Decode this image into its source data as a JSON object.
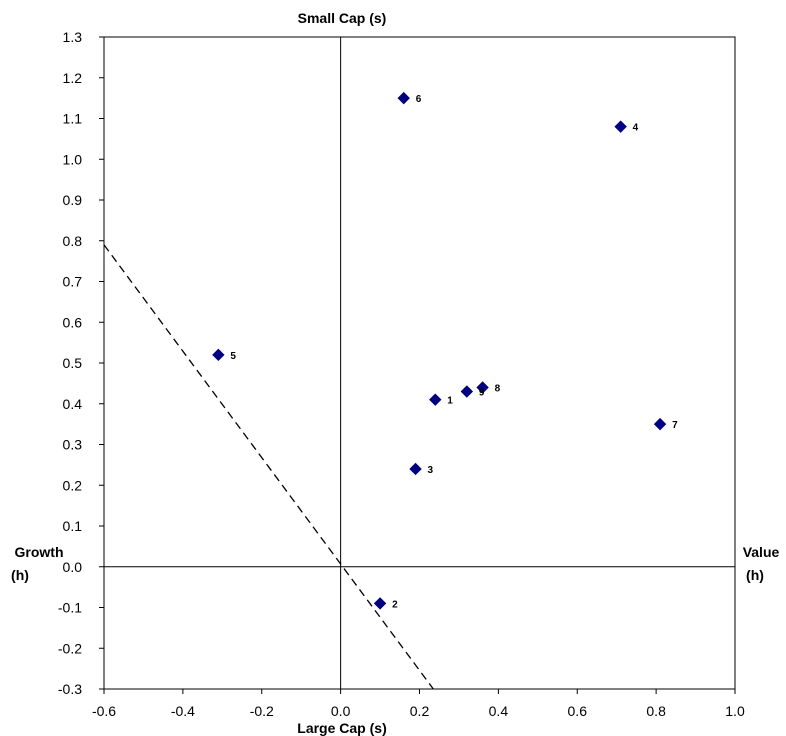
{
  "chart_data": {
    "type": "scatter",
    "top_label": "Small Cap (s)",
    "bottom_label": "Large Cap (s)",
    "left_label": [
      "Growth",
      "(h)"
    ],
    "right_label": [
      "Value",
      "(h)"
    ],
    "xlim": [
      -0.6,
      1.0
    ],
    "ylim": [
      -0.3,
      1.3
    ],
    "x_ticks": [
      -0.6,
      -0.4,
      -0.2,
      0.0,
      0.2,
      0.4,
      0.6,
      0.8,
      1.0
    ],
    "y_ticks": [
      -0.3,
      -0.2,
      -0.1,
      0.0,
      0.1,
      0.2,
      0.3,
      0.4,
      0.5,
      0.6,
      0.7,
      0.8,
      0.9,
      1.0,
      1.1,
      1.2,
      1.3
    ],
    "marker_color": "#000080",
    "grid": false,
    "points": [
      {
        "label": "1",
        "x": 0.24,
        "y": 0.41
      },
      {
        "label": "2",
        "x": 0.1,
        "y": -0.09
      },
      {
        "label": "3",
        "x": 0.19,
        "y": 0.24
      },
      {
        "label": "4",
        "x": 0.71,
        "y": 1.08
      },
      {
        "label": "5",
        "x": -0.31,
        "y": 0.52
      },
      {
        "label": "6",
        "x": 0.16,
        "y": 1.15
      },
      {
        "label": "7",
        "x": 0.81,
        "y": 0.35
      },
      {
        "label": "8",
        "x": 0.36,
        "y": 0.44
      },
      {
        "label": "9",
        "x": 0.32,
        "y": 0.43
      }
    ],
    "dashed_line": {
      "x1": -0.6,
      "y1": 0.79,
      "x2": 0.235,
      "y2": -0.3
    }
  }
}
